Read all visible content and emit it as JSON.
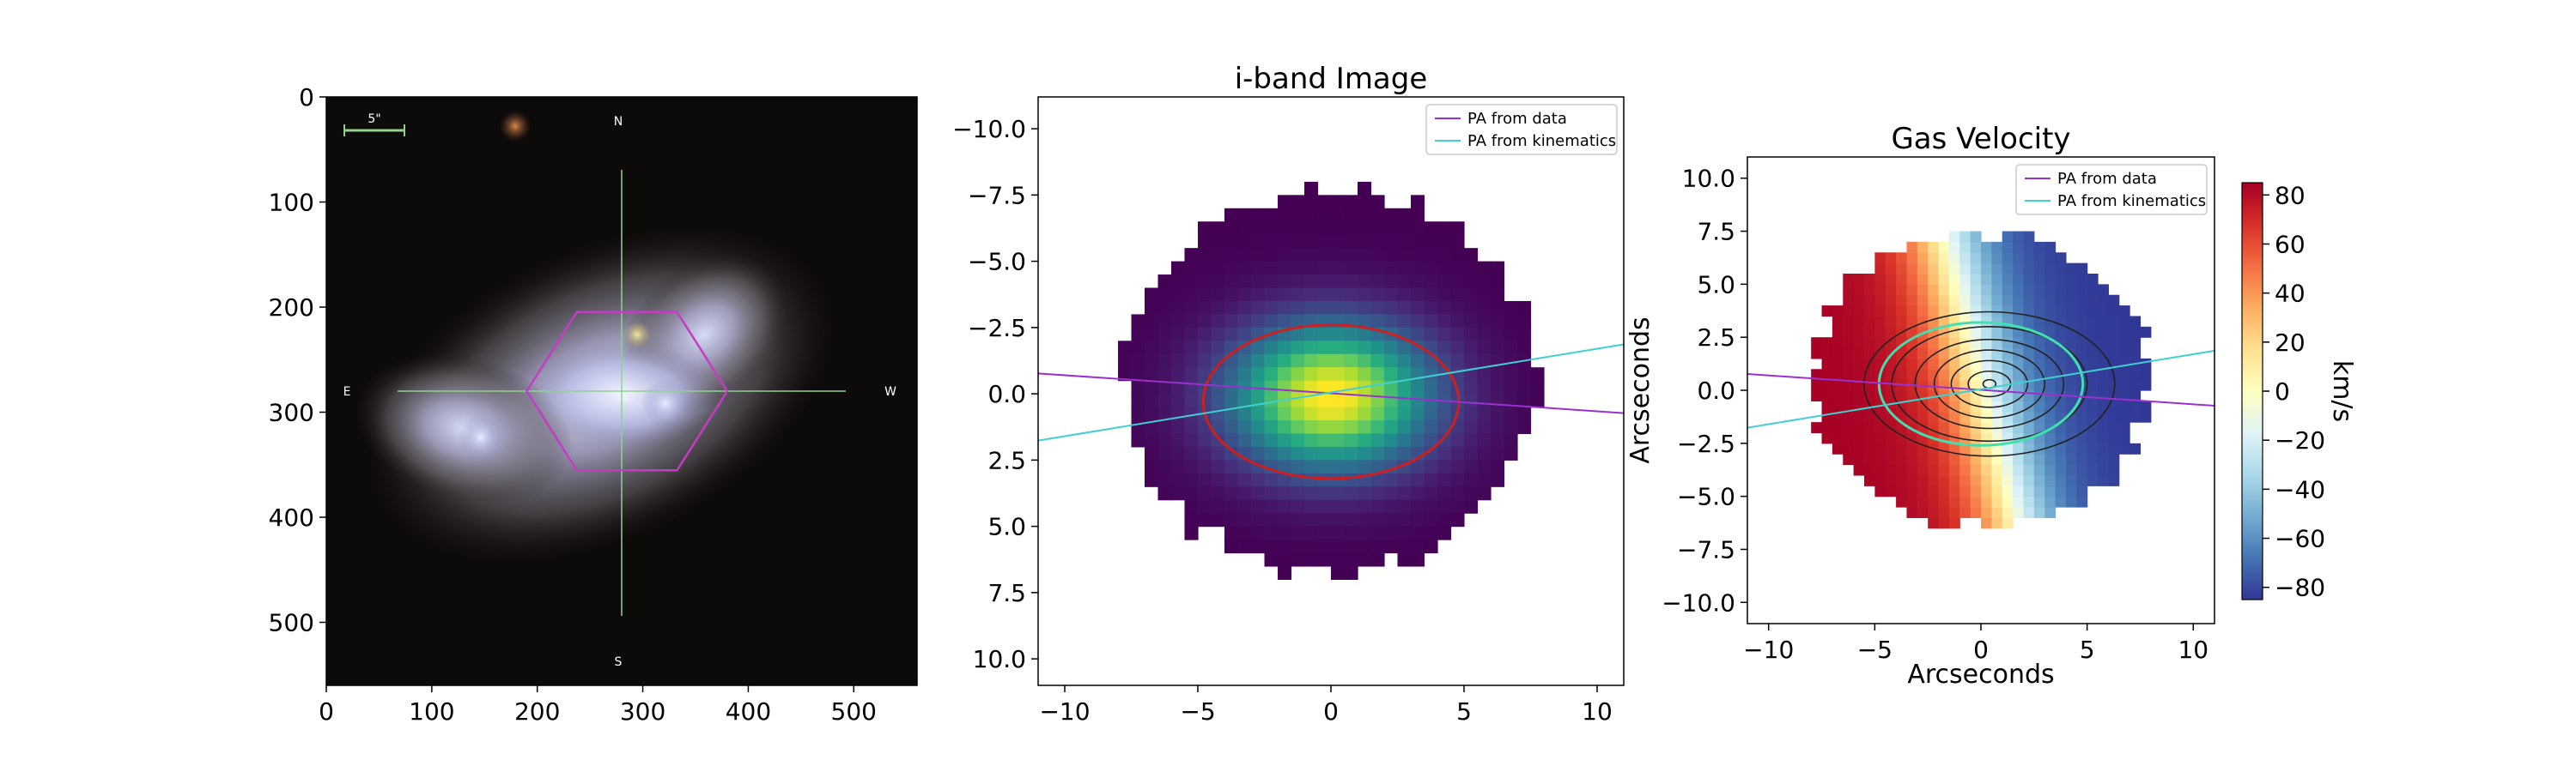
{
  "panels": [
    {
      "type": "image",
      "title": "",
      "xlabel": "",
      "ylabel": "",
      "xlim": [
        0,
        560
      ],
      "ylim": [
        560,
        0
      ],
      "xticks": [
        0,
        100,
        200,
        300,
        400,
        500
      ],
      "yticks": [
        0,
        100,
        200,
        300,
        400,
        500
      ],
      "compass": {
        "north": "N",
        "south": "S",
        "east": "E",
        "west": "W"
      },
      "scale_bar_label": "5\"",
      "hexagon": {
        "center": [
          285,
          280
        ],
        "radius_x": 95,
        "radius_y": 87,
        "color": "#c43cc4"
      },
      "crosshair_color": "#8fd18f"
    },
    {
      "type": "heatmap",
      "title": "i-band Image",
      "xlabel": "",
      "ylabel": "",
      "xlim": [
        -11,
        11
      ],
      "ylim": [
        11,
        -11.2
      ],
      "xticks": [
        -10,
        -5,
        0,
        5,
        10
      ],
      "yticks": [
        -10.0,
        -7.5,
        -5.0,
        -2.5,
        0.0,
        2.5,
        5.0,
        7.5,
        10.0
      ],
      "colormap": "viridis",
      "grid": false,
      "legend_position": "top-right",
      "legend": [
        "PA from data",
        "PA from kinematics"
      ],
      "ellipse": {
        "center": [
          0,
          0.3
        ],
        "semi_x": 4.8,
        "semi_y": 2.9,
        "color": "#cc2020"
      }
    },
    {
      "type": "heatmap",
      "title": "Gas Velocity",
      "xlabel": "Arcseconds",
      "ylabel": "Arcseconds",
      "xlim": [
        -11,
        11
      ],
      "ylim": [
        -11,
        11
      ],
      "xticks": [
        -10,
        -5,
        0,
        5,
        10
      ],
      "yticks": [
        10.0,
        7.5,
        5.0,
        2.5,
        0.0,
        -2.5,
        -5.0,
        -7.5,
        -10.0
      ],
      "colormap": "RdYlBu_r",
      "grid": false,
      "legend_position": "top-right",
      "legend": [
        "PA from data",
        "PA from kinematics"
      ],
      "ellipse": {
        "center": [
          0,
          0.3
        ],
        "semi_x": 4.8,
        "semi_y": 2.9,
        "color": "#40e0b0"
      },
      "colorbar": {
        "label": "km/s",
        "range": [
          -85,
          85
        ],
        "ticks": [
          80,
          60,
          40,
          20,
          0,
          -20,
          -40,
          -60,
          -80
        ]
      }
    }
  ],
  "pa_lines": [
    {
      "name": "PA from data",
      "color": "#9b30d0",
      "slope": -0.068,
      "intercept": 0.02
    },
    {
      "name": "PA from kinematics",
      "color": "#40d0d0",
      "slope": 0.165,
      "intercept": 0.05
    }
  ],
  "colors": {
    "background": "#ffffff",
    "axis": "#000000"
  }
}
